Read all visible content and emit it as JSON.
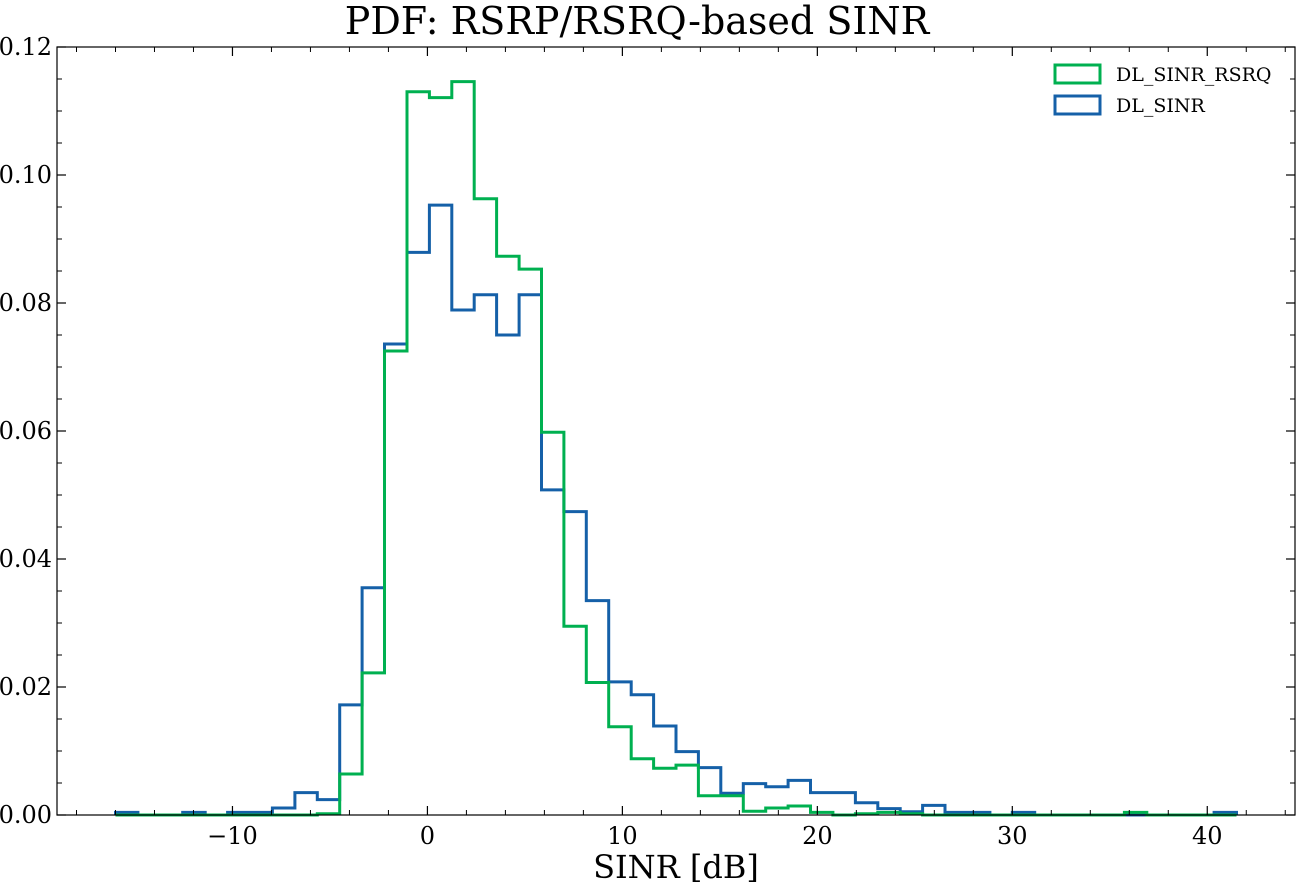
{
  "chart_data": {
    "type": "histogram-step",
    "title": "PDF: RSRP/RSRQ-based SINR",
    "xlabel": "SINR [dB]",
    "ylabel": "",
    "xlim": [
      -19,
      44.5
    ],
    "ylim": [
      0,
      0.12
    ],
    "xticks": [
      -10,
      0,
      10,
      20,
      30,
      40
    ],
    "xtick_labels": [
      "−10",
      "0",
      "10",
      "20",
      "30",
      "40"
    ],
    "yticks": [
      0,
      0.02,
      0.04,
      0.06,
      0.08,
      0.1,
      0.12
    ],
    "ytick_labels": [
      "0.00",
      "0.02",
      "0.04",
      "0.06",
      "0.08",
      "0.10",
      "0.12"
    ],
    "grid": false,
    "legend_position": "top-right",
    "bin_edges": [
      -16.0,
      -14.85,
      -13.7,
      -12.55,
      -11.4,
      -10.25,
      -9.1,
      -7.95,
      -6.8,
      -5.65,
      -4.5,
      -3.35,
      -2.2,
      -1.05,
      0.1,
      1.25,
      2.4,
      3.55,
      4.7,
      5.85,
      7.0,
      8.15,
      9.3,
      10.45,
      11.6,
      12.75,
      13.9,
      15.05,
      16.2,
      17.35,
      18.5,
      19.65,
      20.8,
      21.95,
      23.1,
      24.25,
      25.4,
      26.55,
      27.7,
      28.85,
      30.0,
      31.15,
      32.3,
      33.45,
      34.6,
      35.75,
      36.9,
      38.05,
      39.2,
      40.35,
      41.5
    ],
    "series": [
      {
        "name": "DL_SINR_RSRQ",
        "color": "#00b050",
        "values": [
          0,
          0,
          0,
          0,
          0,
          0,
          0,
          0,
          0,
          0.0002,
          0.0064,
          0.0222,
          0.0725,
          0.113,
          0.1121,
          0.1146,
          0.0963,
          0.0873,
          0.0853,
          0.0598,
          0.0295,
          0.0207,
          0.0138,
          0.0088,
          0.0073,
          0.0078,
          0.003,
          0.003,
          0.0006,
          0.0011,
          0.0014,
          0.0004,
          0,
          0.0002,
          0.0004,
          0.0002,
          0,
          0,
          0,
          0,
          0,
          0,
          0,
          0,
          0,
          0.0004,
          0,
          0,
          0,
          0
        ]
      },
      {
        "name": "DL_SINR",
        "color": "#1560a8",
        "values": [
          0.0004,
          0,
          0,
          0.0004,
          0,
          0.0004,
          0.0004,
          0.0011,
          0.0035,
          0.0024,
          0.0172,
          0.0355,
          0.0736,
          0.0879,
          0.0953,
          0.0789,
          0.0813,
          0.075,
          0.0813,
          0.0508,
          0.0474,
          0.0335,
          0.0208,
          0.0188,
          0.0139,
          0.0099,
          0.0074,
          0.0034,
          0.0049,
          0.0044,
          0.0054,
          0.0035,
          0.0035,
          0.0019,
          0.001,
          0.0005,
          0.0015,
          0.0004,
          0.0004,
          0,
          0.0004,
          0,
          0,
          0,
          0,
          0,
          0,
          0,
          0,
          0.0004
        ]
      }
    ]
  }
}
